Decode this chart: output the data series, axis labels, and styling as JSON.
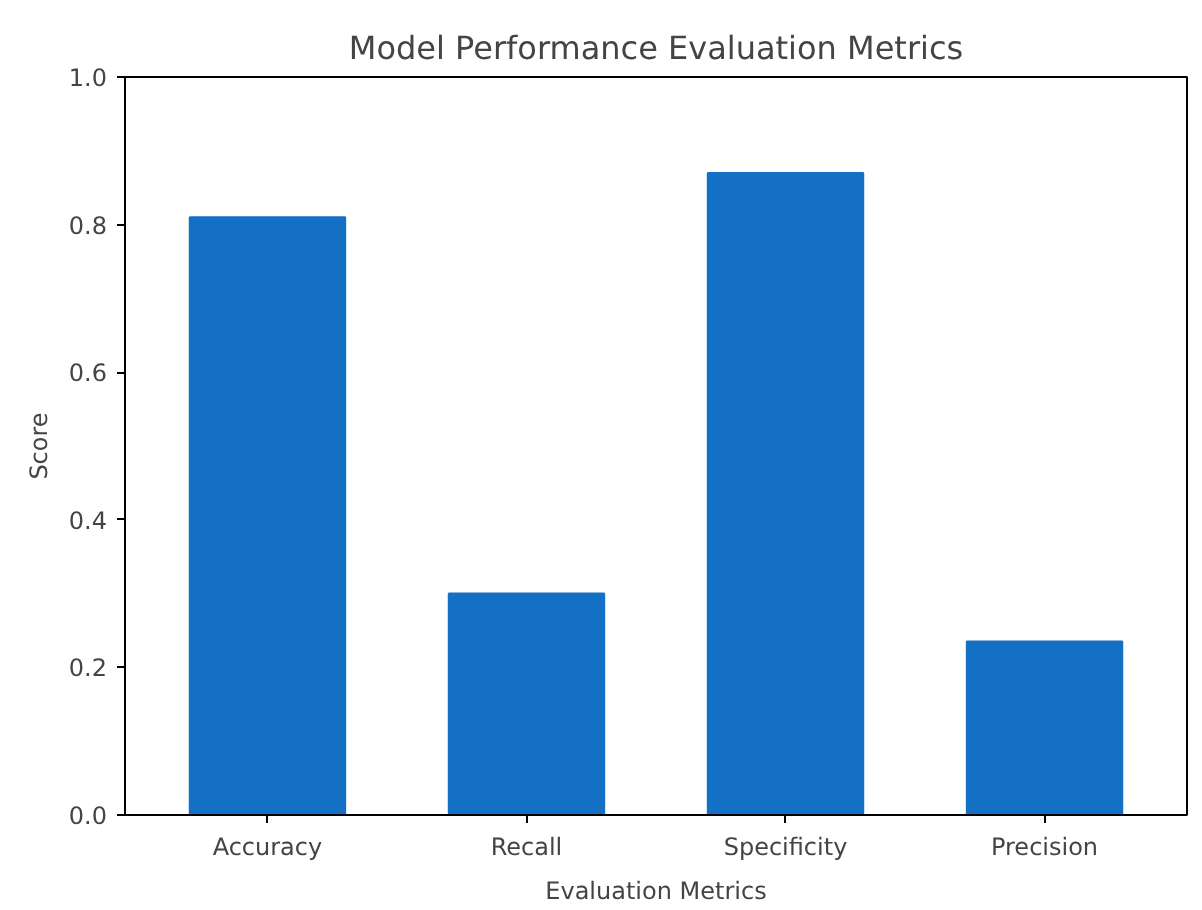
{
  "chart_data": {
    "type": "bar",
    "title": "Model Performance Evaluation Metrics",
    "xlabel": "Evaluation Metrics",
    "ylabel": "Score",
    "categories": [
      "Accuracy",
      "Recall",
      "Specificity",
      "Precision"
    ],
    "values": [
      0.81,
      0.3,
      0.87,
      0.235
    ],
    "color": "#1470c4",
    "ylim": [
      0,
      1
    ],
    "yticks": [
      {
        "value": 0,
        "label": "0.0"
      },
      {
        "value": 0.2,
        "label": "0.2"
      },
      {
        "value": 0.4,
        "label": "0.4"
      },
      {
        "value": 0.6,
        "label": "0.6"
      },
      {
        "value": 0.8,
        "label": "0.8"
      },
      {
        "value": 1,
        "label": "1.0"
      }
    ],
    "grid": false
  }
}
